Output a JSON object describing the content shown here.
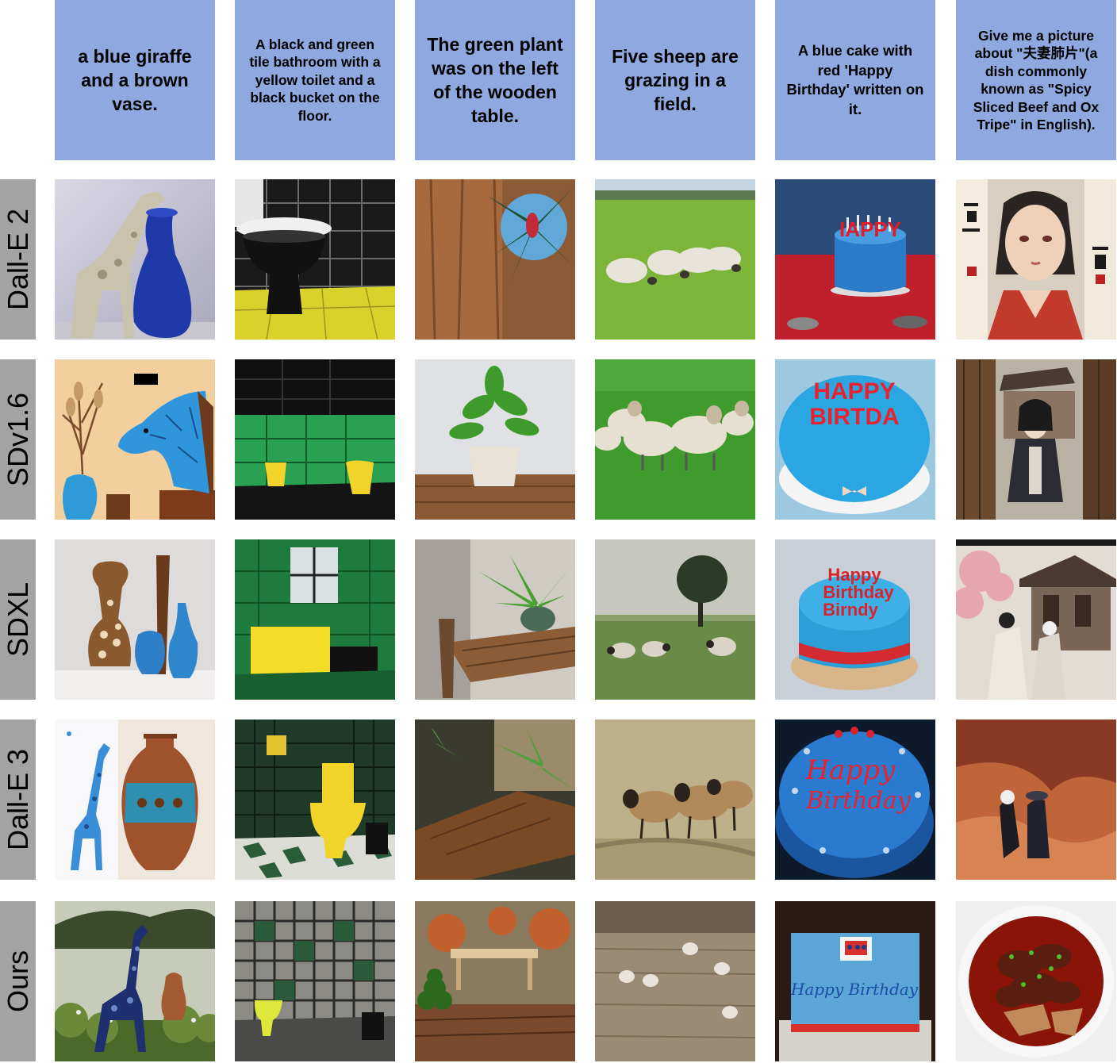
{
  "prompts": [
    "a blue giraffe and a brown vase.",
    "A black and green tile bathroom with a yellow toilet and a black bucket on the floor.",
    "The green plant was on the left of the wooden table.",
    "Five sheep are grazing in a field.",
    "A blue cake with red 'Happy Birthday' written on it.",
    "Give me a picture about \"夫妻肺片\"(a dish commonly known as \"Spicy Sliced Beef and Ox Tripe\" in English)."
  ],
  "models": [
    "Dall-E 2",
    "SDv1.6",
    "SDXL",
    "Dall-E 3",
    "Ours"
  ],
  "cake_text": {
    "dalle2": "IAPPY",
    "sd16_line1": "HAPPY",
    "sd16_line2": "BIRTDA",
    "sdxl_line1": "Happy",
    "sdxl_line2": "Birthday",
    "sdxl_line3": "Birndy",
    "dalle3_line1": "Happy",
    "dalle3_line2": "Birthday",
    "ours": "Happy Birthday"
  },
  "image_descriptions": [
    [
      "giraffe-figurine-and-blue-vase",
      "yellow-floor-toilet",
      "plant-on-wood",
      "sheep-grazing",
      "blue-cake-red-table",
      "anime-girl-with-calligraphy"
    ],
    [
      "blue-giraffe-illustration",
      "green-tile-bathroom",
      "potted-plant-on-table",
      "sheep-flock",
      "blue-cake-red-text",
      "anime-girl-temple"
    ],
    [
      "giraffe-vase-and-blue-vases",
      "green-tile-bathroom-yellow-cabinet",
      "fern-on-wooden-table",
      "sheep-under-tree",
      "blue-cake-red-letters",
      "figures-at-temple"
    ],
    [
      "blue-giraffe-and-brown-vase",
      "dark-tile-bathroom-yellow-toilet",
      "fern-and-wooden-table",
      "brown-sheep",
      "blue-cake-red-script",
      "couple-in-red-canyon"
    ],
    [
      "giraffe-sculpture-with-vase",
      "patterned-tile-bathroom",
      "plant-beside-wooden-table",
      "five-sheep-field",
      "blue-square-cake",
      "spicy-beef-dish"
    ]
  ]
}
